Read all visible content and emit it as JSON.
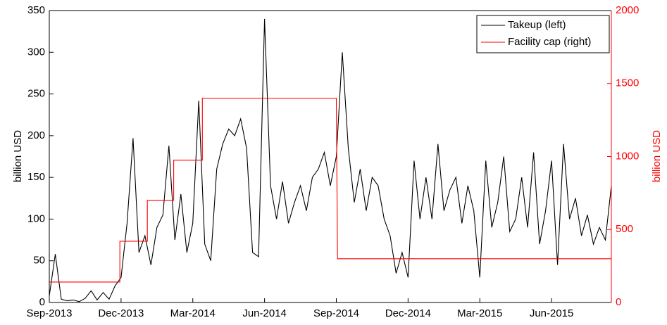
{
  "chart_data": {
    "type": "line",
    "x_ticks_note_free": null,
    "ylabel": "billion USD",
    "y2label": "billion USD",
    "xlim": [
      0,
      23.5
    ],
    "xticks": [
      {
        "value": 0,
        "label": "Sep-2013"
      },
      {
        "value": 3,
        "label": "Dec-2013"
      },
      {
        "value": 6,
        "label": "Mar-2014"
      },
      {
        "value": 9,
        "label": "Jun-2014"
      },
      {
        "value": 12,
        "label": "Sep-2014"
      },
      {
        "value": 15,
        "label": "Dec-2014"
      },
      {
        "value": 18,
        "label": "Mar-2015"
      },
      {
        "value": 21,
        "label": "Jun-2015"
      }
    ],
    "ylim": [
      0,
      350
    ],
    "yticks": [
      0,
      50,
      100,
      150,
      200,
      250,
      300,
      350
    ],
    "y2lim": [
      0,
      2000
    ],
    "y2ticks": [
      0,
      500,
      1000,
      1500,
      2000
    ],
    "legend": "upper right",
    "series": [
      {
        "name": "Takeup (left)",
        "color": "#000000",
        "x": [
          0,
          0.25,
          0.5,
          0.75,
          1,
          1.25,
          1.5,
          1.75,
          2,
          2.25,
          2.5,
          2.75,
          3,
          3.25,
          3.5,
          3.75,
          4,
          4.25,
          4.5,
          4.75,
          5,
          5.25,
          5.5,
          5.75,
          6,
          6.25,
          6.5,
          6.75,
          7,
          7.25,
          7.5,
          7.75,
          8,
          8.25,
          8.5,
          8.75,
          9,
          9.25,
          9.5,
          9.75,
          10,
          10.25,
          10.5,
          10.75,
          11,
          11.25,
          11.5,
          11.75,
          12,
          12.25,
          12.5,
          12.75,
          13,
          13.25,
          13.5,
          13.75,
          14,
          14.25,
          14.5,
          14.75,
          15,
          15.25,
          15.5,
          15.75,
          16,
          16.25,
          16.5,
          16.75,
          17,
          17.25,
          17.5,
          17.75,
          18,
          18.25,
          18.5,
          18.75,
          19,
          19.25,
          19.5,
          19.75,
          20,
          20.25,
          20.5,
          20.75,
          21,
          21.25,
          21.5,
          21.75,
          22,
          22.25,
          22.5,
          22.75,
          23,
          23.25,
          23.5
        ],
        "values": [
          8,
          58,
          4,
          2,
          3,
          1,
          5,
          14,
          3,
          12,
          4,
          20,
          30,
          95,
          197,
          60,
          80,
          45,
          90,
          105,
          188,
          75,
          130,
          60,
          95,
          242,
          70,
          50,
          160,
          190,
          208,
          200,
          220,
          185,
          60,
          55,
          340,
          140,
          100,
          145,
          95,
          120,
          140,
          110,
          150,
          160,
          180,
          140,
          175,
          300,
          185,
          120,
          160,
          110,
          150,
          140,
          100,
          80,
          35,
          60,
          30,
          170,
          100,
          150,
          100,
          190,
          110,
          135,
          150,
          95,
          140,
          110,
          30,
          170,
          90,
          120,
          175,
          85,
          100,
          150,
          90,
          180,
          70,
          110,
          170,
          45,
          190,
          100,
          125,
          80,
          105,
          70,
          90,
          75,
          140
        ]
      },
      {
        "name": "Facility cap (right)",
        "color": "#ff0000",
        "axis": "y2",
        "x": [
          0,
          2.95,
          2.95,
          4.1,
          4.1,
          5.2,
          5.2,
          6.4,
          6.4,
          12.0,
          12.05,
          23.5
        ],
        "values": [
          140,
          140,
          420,
          420,
          700,
          700,
          975,
          975,
          1400,
          1400,
          300,
          300
        ]
      }
    ]
  }
}
